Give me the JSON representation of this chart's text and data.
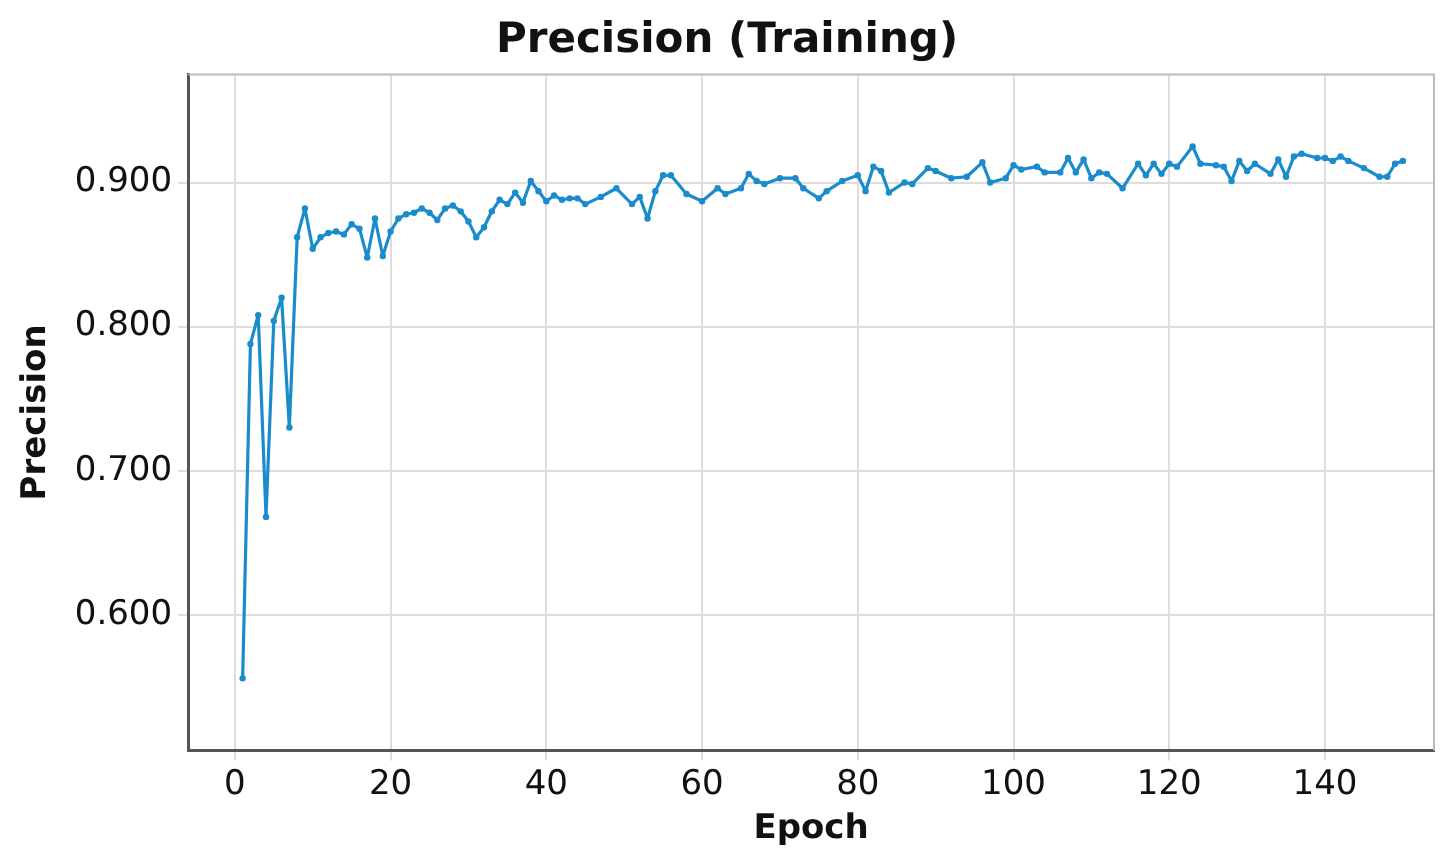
{
  "chart_data": {
    "type": "line",
    "title": "Precision (Training)",
    "xlabel": "Epoch",
    "ylabel": "Precision",
    "x": [
      1,
      2,
      3,
      4,
      5,
      6,
      7,
      8,
      9,
      10,
      11,
      12,
      13,
      14,
      15,
      16,
      17,
      18,
      19,
      20,
      21,
      22,
      23,
      24,
      25,
      26,
      27,
      28,
      29,
      30,
      31,
      32,
      33,
      34,
      35,
      36,
      37,
      38,
      39,
      40,
      41,
      42,
      43,
      44,
      45,
      47,
      49,
      51,
      52,
      53,
      54,
      55,
      56,
      58,
      60,
      62,
      63,
      65,
      66,
      67,
      68,
      70,
      72,
      73,
      75,
      76,
      78,
      80,
      81,
      82,
      83,
      84,
      86,
      87,
      89,
      90,
      92,
      94,
      96,
      97,
      99,
      100,
      101,
      103,
      104,
      106,
      107,
      108,
      109,
      110,
      111,
      112,
      114,
      116,
      117,
      118,
      119,
      120,
      121,
      123,
      124,
      126,
      127,
      128,
      129,
      130,
      131,
      133,
      134,
      135,
      136,
      137,
      139,
      140,
      141,
      142,
      143,
      145,
      147,
      148,
      149,
      150
    ],
    "series": [
      {
        "color": "#1a8ccc",
        "values": [
          0.556,
          0.788,
          0.808,
          0.668,
          0.804,
          0.82,
          0.73,
          0.862,
          0.882,
          0.854,
          0.862,
          0.865,
          0.866,
          0.864,
          0.871,
          0.868,
          0.848,
          0.875,
          0.849,
          0.866,
          0.875,
          0.878,
          0.879,
          0.882,
          0.879,
          0.874,
          0.882,
          0.884,
          0.88,
          0.873,
          0.862,
          0.869,
          0.88,
          0.888,
          0.885,
          0.893,
          0.886,
          0.901,
          0.894,
          0.887,
          0.891,
          0.888,
          0.889,
          0.889,
          0.885,
          0.89,
          0.896,
          0.885,
          0.89,
          0.875,
          0.894,
          0.905,
          0.905,
          0.892,
          0.887,
          0.896,
          0.892,
          0.896,
          0.906,
          0.901,
          0.899,
          0.903,
          0.903,
          0.896,
          0.889,
          0.894,
          0.901,
          0.905,
          0.894,
          0.911,
          0.908,
          0.893,
          0.9,
          0.899,
          0.91,
          0.908,
          0.903,
          0.904,
          0.914,
          0.9,
          0.903,
          0.912,
          0.909,
          0.911,
          0.907,
          0.907,
          0.917,
          0.907,
          0.916,
          0.903,
          0.907,
          0.906,
          0.896,
          0.913,
          0.905,
          0.913,
          0.906,
          0.913,
          0.911,
          0.925,
          0.913,
          0.912,
          0.911,
          0.901,
          0.915,
          0.908,
          0.913,
          0.906,
          0.916,
          0.904,
          0.918,
          0.92,
          0.917,
          0.917,
          0.915,
          0.918,
          0.915,
          0.91,
          0.904,
          0.904,
          0.913,
          0.915
        ]
      }
    ],
    "xlim": [
      -6,
      154
    ],
    "xticks": [
      0,
      20,
      40,
      60,
      80,
      100,
      120,
      140
    ],
    "ylim": [
      0.506,
      0.975
    ],
    "yticks": [
      {
        "value": 0.6,
        "label": "0.600"
      },
      {
        "value": 0.7,
        "label": "0.700"
      },
      {
        "value": 0.8,
        "label": "0.800"
      },
      {
        "value": 0.9,
        "label": "0.900"
      }
    ],
    "grid": true,
    "marker": "circle",
    "line_style": "solid"
  }
}
